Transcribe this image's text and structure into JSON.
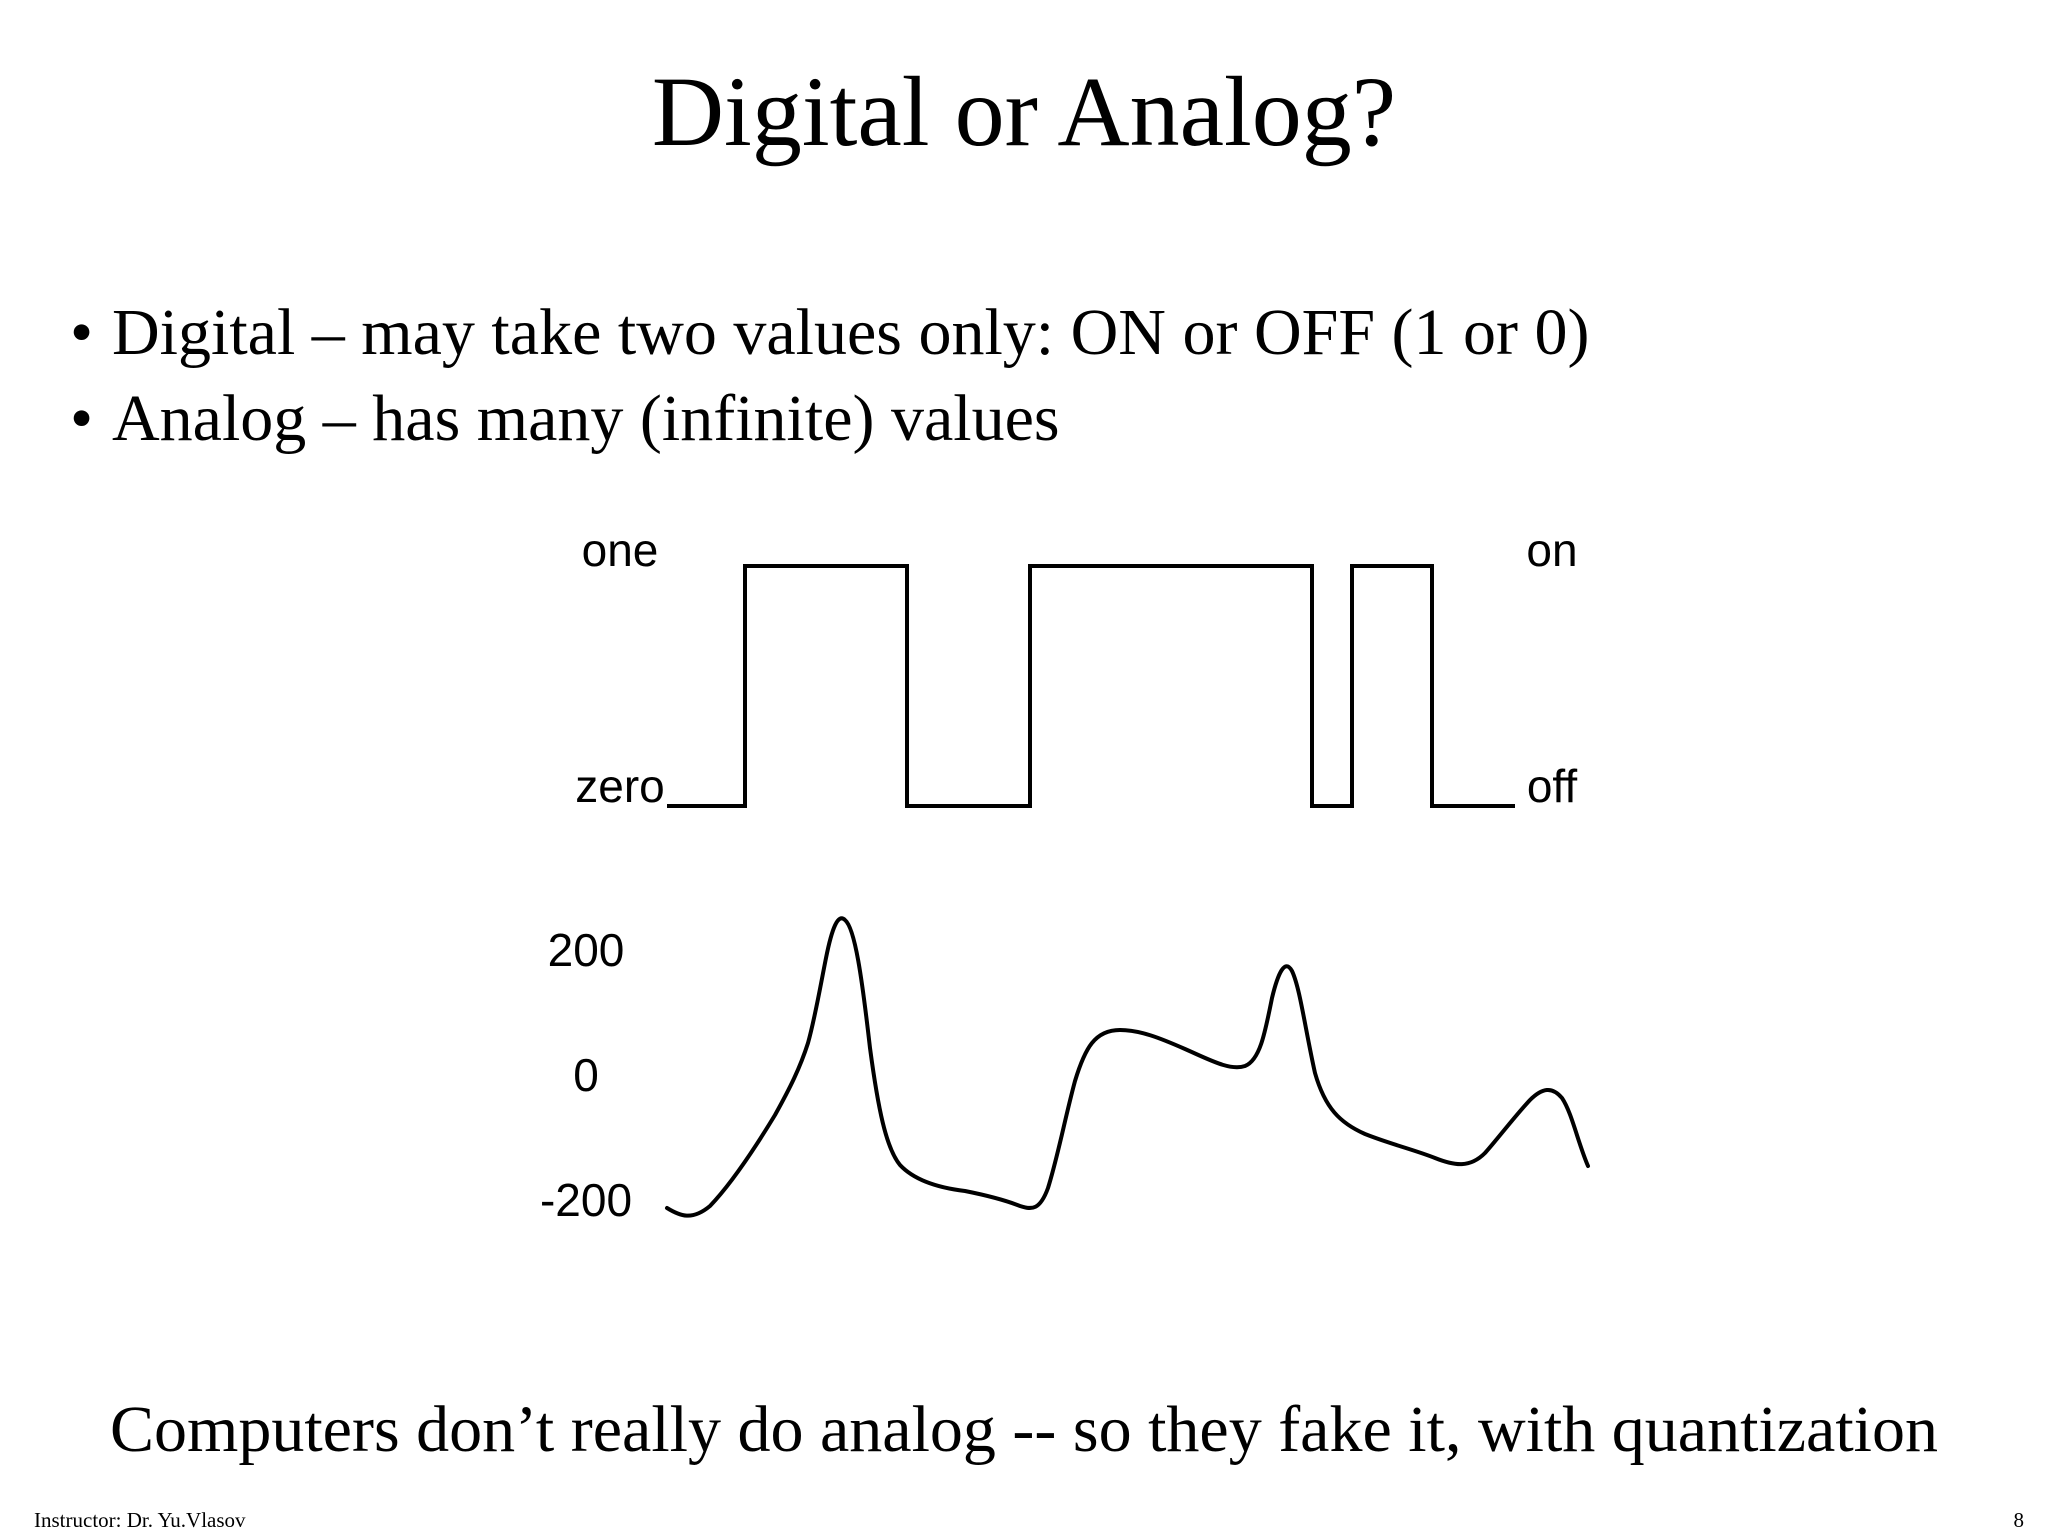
{
  "slide": {
    "title": "Digital or Analog?",
    "bullets": [
      "Digital – may take two values only: ON or OFF (1 or 0)",
      "Analog – has many (infinite) values"
    ],
    "caption": "Computers don’t really do analog -- so they fake it, with quantization",
    "footer_instructor": "Instructor: Dr. Yu.Vlasov",
    "page_number": "8"
  },
  "figure": {
    "digital": {
      "left_high_label": "one",
      "left_low_label": "zero",
      "right_high_label": "on",
      "right_low_label": "off",
      "levels": [
        0,
        1,
        0,
        1,
        0,
        1,
        0
      ]
    },
    "analog": {
      "axis_labels": [
        "200",
        "0",
        "-200"
      ]
    }
  }
}
